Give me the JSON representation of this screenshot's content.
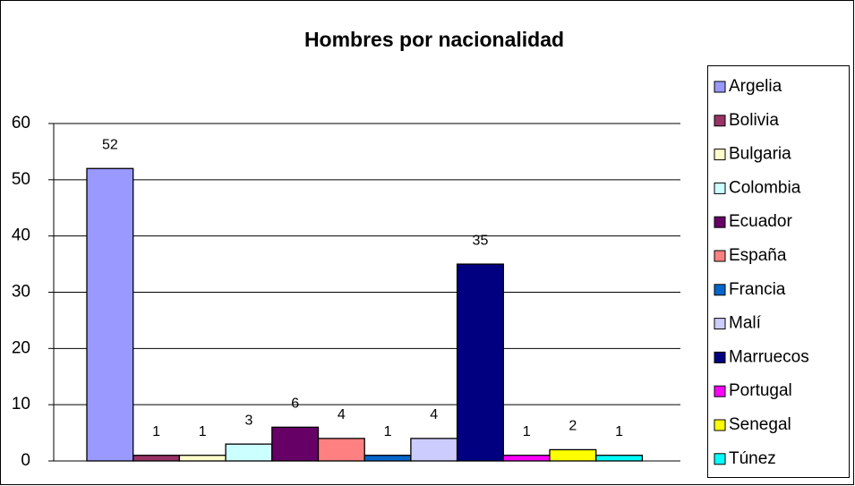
{
  "chart_data": {
    "type": "bar",
    "title": "Hombres por nacionalidad",
    "series": [
      {
        "name": "Argelia",
        "color": "#9999ff",
        "values": [
          52
        ]
      },
      {
        "name": "Bolivia",
        "color": "#993366",
        "values": [
          1
        ]
      },
      {
        "name": "Bulgaria",
        "color": "#ffffcc",
        "values": [
          1
        ]
      },
      {
        "name": "Colombia",
        "color": "#ccffff",
        "values": [
          3
        ]
      },
      {
        "name": "Ecuador",
        "color": "#660066",
        "values": [
          6
        ]
      },
      {
        "name": "España",
        "color": "#ff8080",
        "values": [
          4
        ]
      },
      {
        "name": "Francia",
        "color": "#0066cc",
        "values": [
          1
        ]
      },
      {
        "name": "Malí",
        "color": "#ccccff",
        "values": [
          4
        ]
      },
      {
        "name": "Marruecos",
        "color": "#000080",
        "values": [
          35
        ]
      },
      {
        "name": "Portugal",
        "color": "#ff00ff",
        "values": [
          1
        ]
      },
      {
        "name": "Senegal",
        "color": "#ffff00",
        "values": [
          2
        ]
      },
      {
        "name": "Túnez",
        "color": "#00ffff",
        "values": [
          1
        ]
      }
    ],
    "ylim": [
      0,
      60
    ],
    "yticks": [
      0,
      10,
      20,
      30,
      40,
      50,
      60
    ],
    "grid": true,
    "legend": "right"
  }
}
